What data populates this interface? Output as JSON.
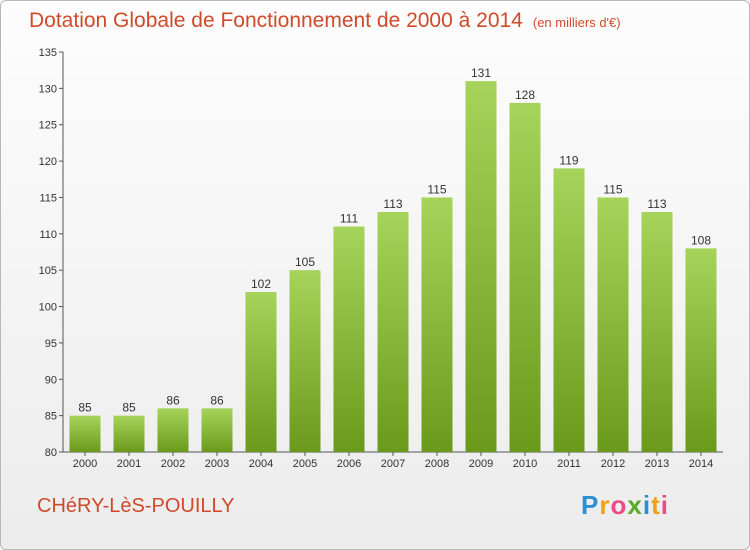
{
  "title": "Dotation Globale de Fonctionnement de 2000 à 2014",
  "unit": "(en milliers d'€)",
  "commune": "CHéRY-LèS-POUILLY",
  "logo": {
    "letters": [
      "P",
      "r",
      "o",
      "x",
      "i",
      "t",
      "i"
    ],
    "colors": [
      "#2e8fd0",
      "#f0a020",
      "#e84d8a",
      "#5aaa2a",
      "#2e8fd0",
      "#f0a020",
      "#e84d8a"
    ]
  },
  "colors": {
    "bar_light": "#a6d45a",
    "bar_dark": "#6a9a1c",
    "title": "#cf4a2a"
  },
  "chart_data": {
    "type": "bar",
    "categories": [
      "2000",
      "2001",
      "2002",
      "2003",
      "2004",
      "2005",
      "2006",
      "2007",
      "2008",
      "2009",
      "2010",
      "2011",
      "2012",
      "2013",
      "2014"
    ],
    "values": [
      85,
      85,
      86,
      86,
      102,
      105,
      111,
      113,
      115,
      131,
      128,
      119,
      115,
      113,
      108
    ],
    "ylim": [
      80,
      135
    ],
    "yticks": [
      80,
      85,
      90,
      95,
      100,
      105,
      110,
      115,
      120,
      125,
      130,
      135
    ],
    "xlabel": "",
    "ylabel": "",
    "grid": false,
    "legend": "none"
  }
}
